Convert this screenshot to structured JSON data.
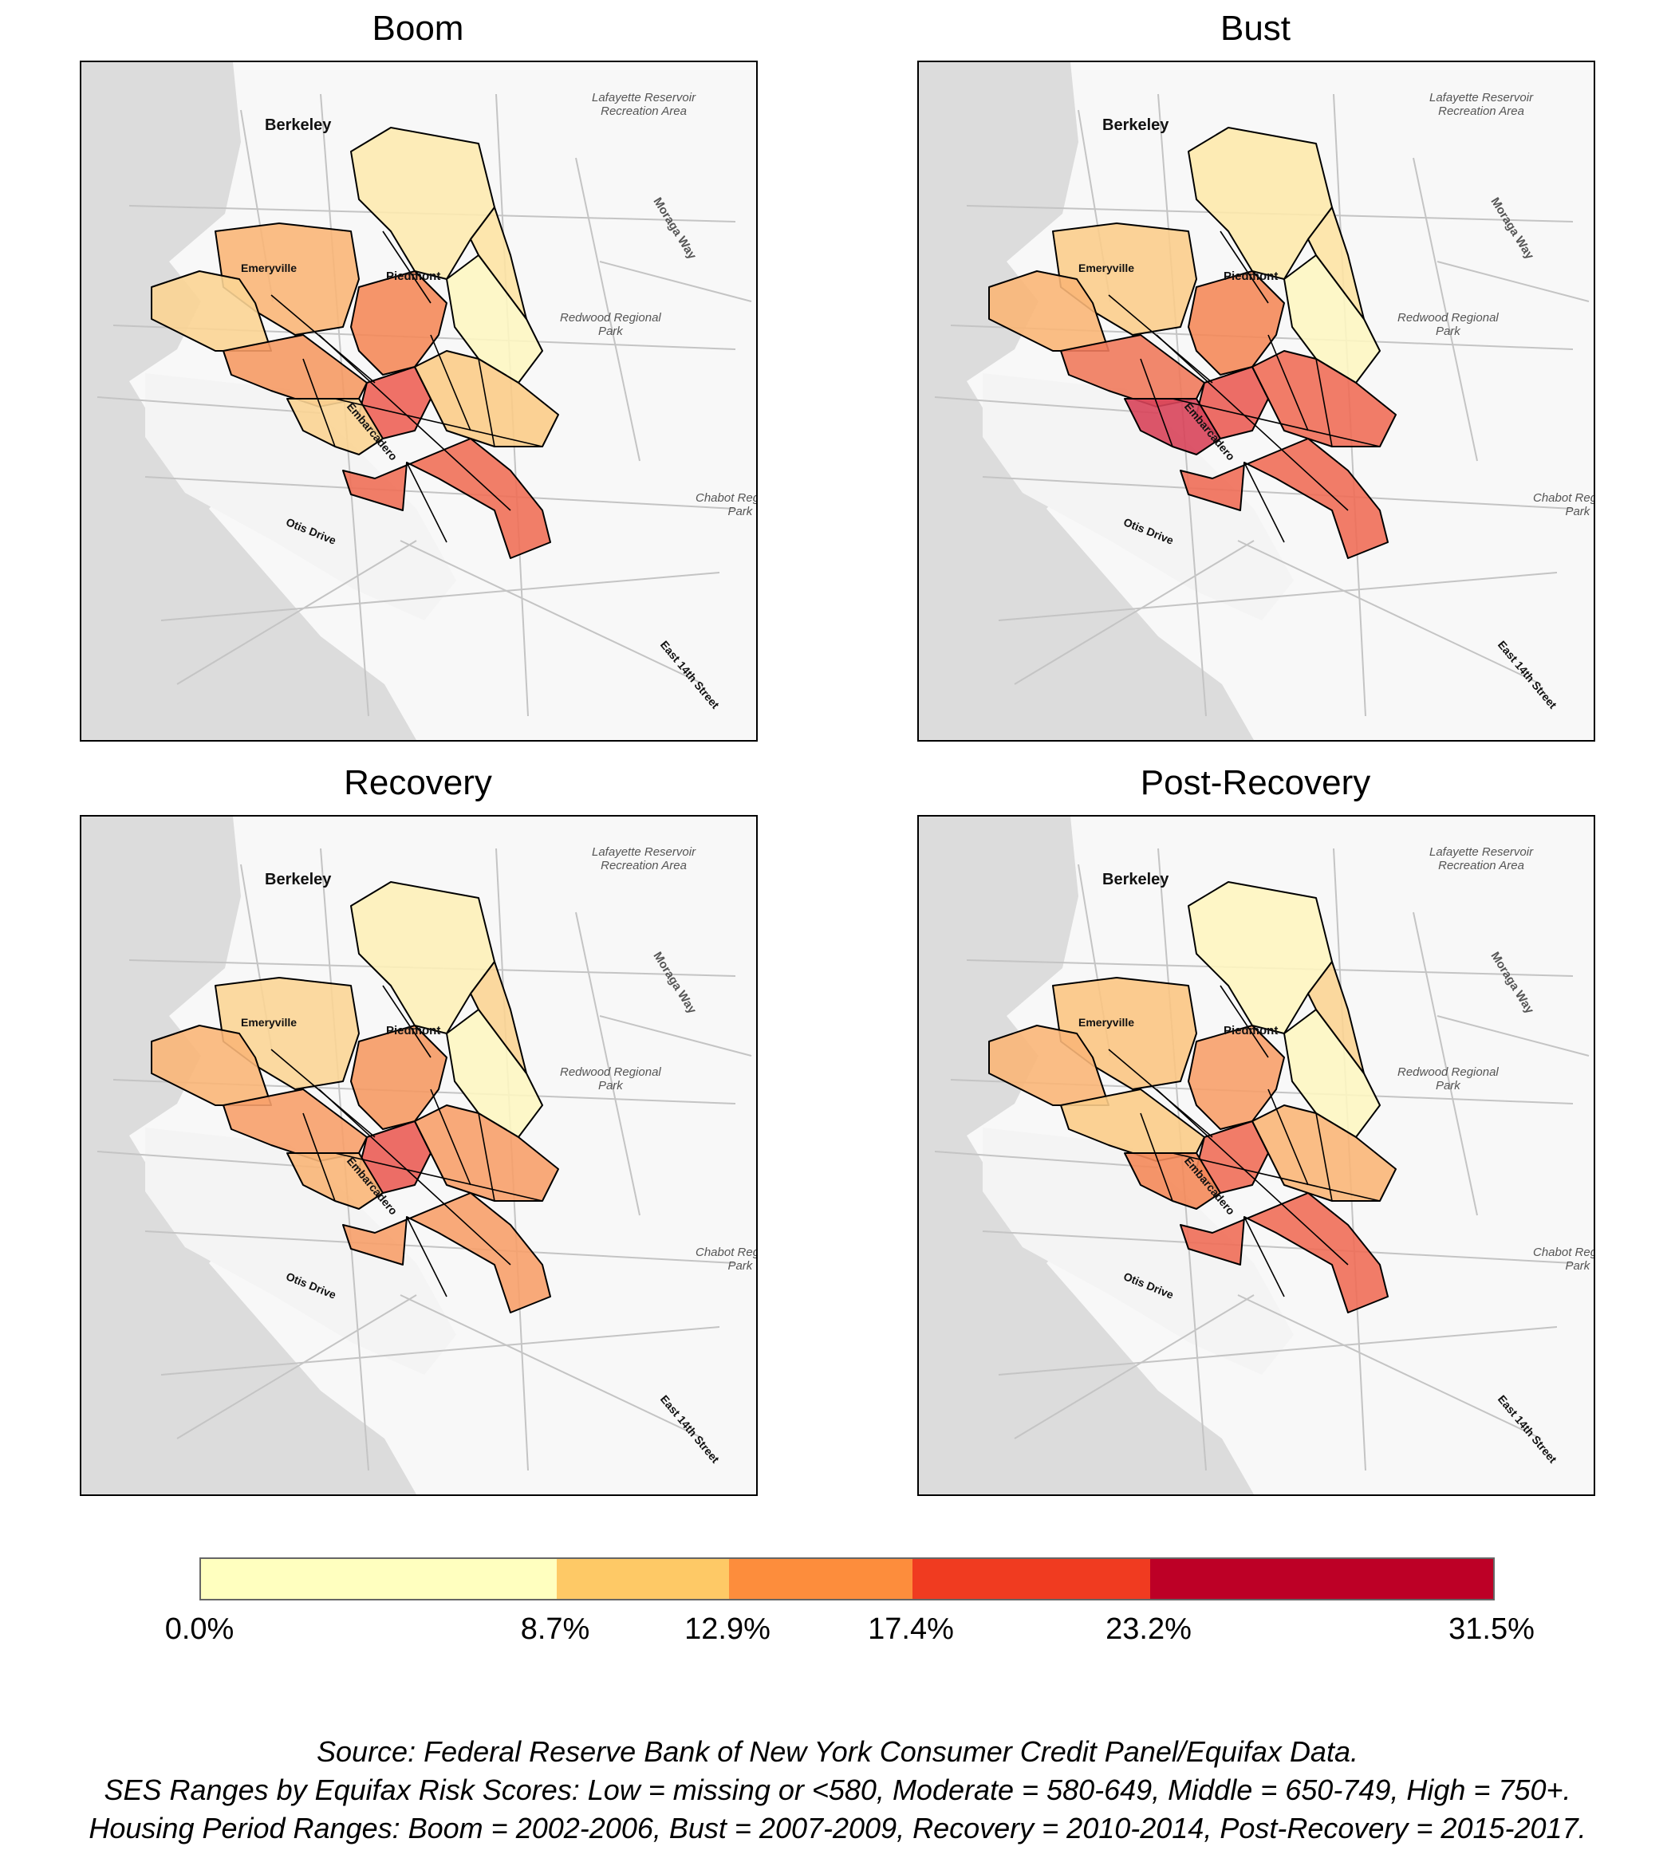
{
  "panels": [
    {
      "title": "Boom",
      "colors": [
        "#f07058",
        "#fdeab0",
        "#f9b678",
        "#fbd493",
        "#f59a64",
        "#ed6256",
        "#fbd493",
        "#f48a5a",
        "#fdf6c2",
        "#fde3a4",
        "#fbcc88"
      ]
    },
    {
      "title": "Bust",
      "colors": [
        "#ef6e58",
        "#fde9ac",
        "#fbcd8c",
        "#f9b677",
        "#f07a5c",
        "#ea5d55",
        "#d8445a",
        "#f48a5a",
        "#fdf6c2",
        "#fde3a4",
        "#ef6e58"
      ]
    },
    {
      "title": "Recovery",
      "colors": [
        "#f7a06a",
        "#fdf0b8",
        "#fbd596",
        "#f9b678",
        "#f7a06a",
        "#ea5d55",
        "#f9b678",
        "#f59a64",
        "#fdf6c2",
        "#fbd493",
        "#f7a06a"
      ]
    },
    {
      "title": "Post-Recovery",
      "colors": [
        "#ef6e58",
        "#fef5c0",
        "#fbc583",
        "#f9b678",
        "#fbcc88",
        "#ef6e58",
        "#f48a5a",
        "#f7a06a",
        "#fdf6c2",
        "#fbd493",
        "#f9b678"
      ]
    }
  ],
  "map_labels": {
    "berkeley": "Berkeley",
    "piedmont": "Piedmont",
    "lafayette": "Lafayette Reservoir\nRecreation Area",
    "moraga": "Moraga Way",
    "redwood": "Redwood Regional\nPark",
    "cabot": "Chabot Regional\nPark",
    "otis": "Otis Drive",
    "east14": "East 14th Street",
    "emeryville": "Emeryville",
    "embarcadero": "Embarcadero"
  },
  "legend": {
    "colors": [
      "#ffffbf",
      "#fec966",
      "#fd8d3c",
      "#f03b20",
      "#bd0026"
    ],
    "ticks": [
      "0.0%",
      "8.7%",
      "12.9%",
      "17.4%",
      "23.2%",
      "31.5%"
    ]
  },
  "notes": [
    "Source: Federal Reserve Bank of New York Consumer Credit Panel/Equifax Data.",
    "SES Ranges by Equifax Risk Scores: Low = missing or <580, Moderate = 580-649, Middle = 650-749, High = 750+.",
    "Housing Period Ranges: Boom = 2002-2006, Bust = 2007-2009, Recovery = 2010-2014, Post-Recovery = 2015-2017."
  ]
}
